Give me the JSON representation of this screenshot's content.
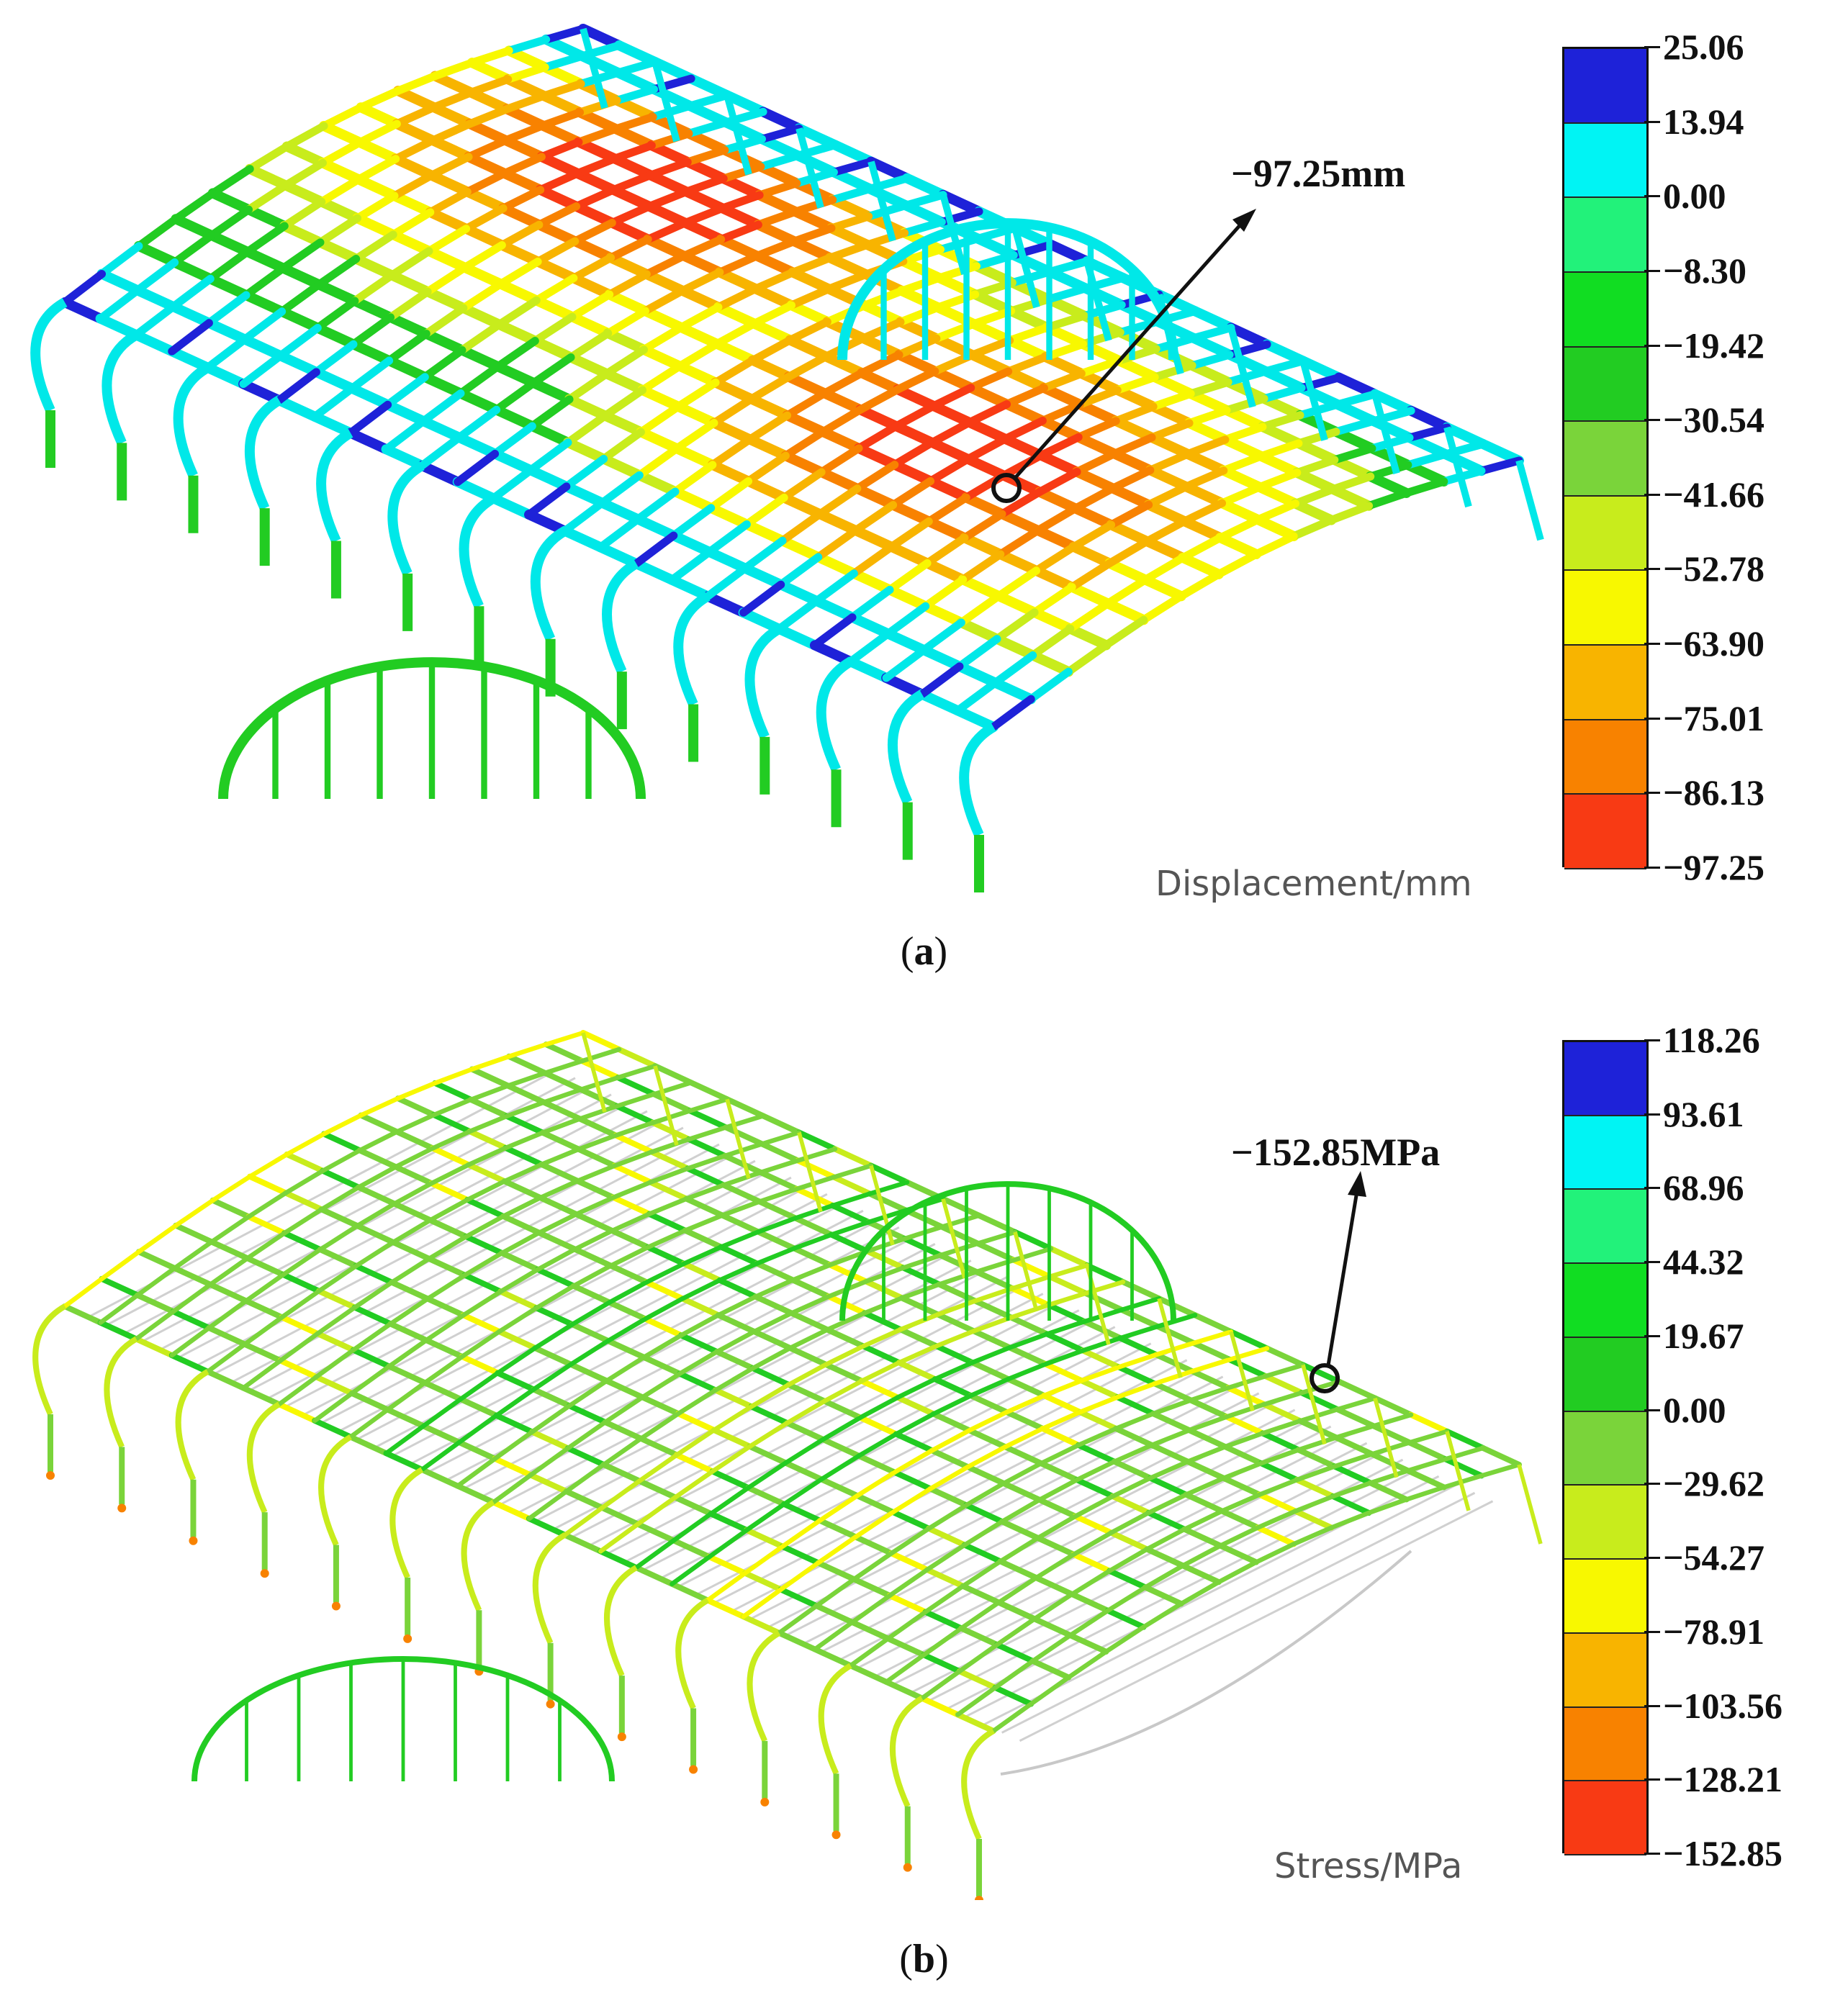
{
  "panel_a": {
    "caption_open": "(",
    "caption_letter": "a",
    "caption_close": ")",
    "callout": "−97.25mm",
    "unit_label": "Displacement/mm",
    "legend": [
      {
        "value": "25.06",
        "color": "#1e22d8"
      },
      {
        "value": "13.94",
        "color": "#00f4f4"
      },
      {
        "value": "0.00",
        "color": "#22f27a"
      },
      {
        "value": "−8.30",
        "color": "#11dd22"
      },
      {
        "value": "−19.42",
        "color": "#22cc22"
      },
      {
        "value": "−30.54",
        "color": "#7ad43a"
      },
      {
        "value": "−41.66",
        "color": "#c8ec1c"
      },
      {
        "value": "−52.78",
        "color": "#f8f800"
      },
      {
        "value": "−63.90",
        "color": "#f8b400"
      },
      {
        "value": "−75.01",
        "color": "#f88200"
      },
      {
        "value": "−86.13",
        "color": "#f83a14"
      },
      {
        "value": "−97.25",
        "color": null
      }
    ]
  },
  "panel_b": {
    "caption_open": "(",
    "caption_letter": "b",
    "caption_close": ")",
    "callout": "−152.85MPa",
    "unit_label": "Stress/MPa",
    "legend": [
      {
        "value": "118.26",
        "color": "#1e22d8"
      },
      {
        "value": "93.61",
        "color": "#00f4f4"
      },
      {
        "value": "68.96",
        "color": "#22f27a"
      },
      {
        "value": "44.32",
        "color": "#11dd22"
      },
      {
        "value": "19.67",
        "color": "#22cc22"
      },
      {
        "value": "0.00",
        "color": "#7ad43a"
      },
      {
        "value": "−29.62",
        "color": "#c8ec1c"
      },
      {
        "value": "−54.27",
        "color": "#f8f800"
      },
      {
        "value": "−78.91",
        "color": "#f8b400"
      },
      {
        "value": "−103.56",
        "color": "#f88200"
      },
      {
        "value": "−128.21",
        "color": "#f83a14"
      },
      {
        "value": "−152.85",
        "color": null
      }
    ]
  }
}
